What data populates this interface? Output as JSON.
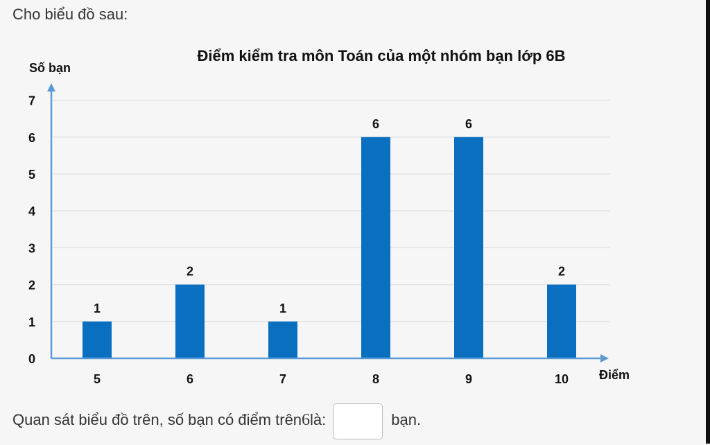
{
  "intro_text": "Cho biểu đồ sau:",
  "question": {
    "before": "Quan sát biểu đồ trên, số bạn có điểm trên ",
    "number": "6",
    "after_number": " là:",
    "unit": "bạn."
  },
  "colors": {
    "bar": "#0b6fbf",
    "axis": "#5b9ad5",
    "grid": "#e3e3e3"
  },
  "chart_data": {
    "type": "bar",
    "title": "Điểm kiểm tra môn Toán của một nhóm bạn lớp 6B",
    "xlabel": "Điểm",
    "ylabel": "Số bạn",
    "categories": [
      "5",
      "6",
      "7",
      "8",
      "9",
      "10"
    ],
    "values": [
      1,
      2,
      1,
      6,
      6,
      2
    ],
    "ylim": [
      0,
      7
    ],
    "yticks": [
      0,
      1,
      2,
      3,
      4,
      5,
      6,
      7
    ],
    "grid": true,
    "data_labels": true
  }
}
